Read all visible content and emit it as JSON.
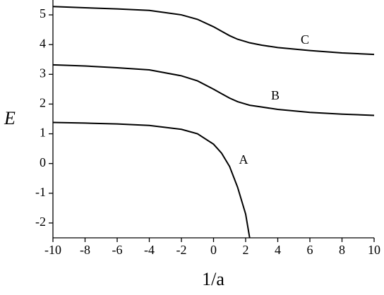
{
  "chart_data": {
    "type": "line",
    "xlabel": "1/a",
    "ylabel": "E",
    "x": [
      -10,
      -8,
      -6,
      -4,
      -2,
      -1,
      0,
      0.5,
      1,
      1.5,
      2,
      2.25,
      3,
      4,
      6,
      8,
      10
    ],
    "series": [
      {
        "name": "A",
        "color": "#000000",
        "values": [
          1.38,
          1.36,
          1.33,
          1.28,
          1.15,
          1.0,
          0.65,
          0.35,
          -0.1,
          -0.8,
          -1.7,
          -2.5,
          null,
          null,
          null,
          null,
          null
        ]
      },
      {
        "name": "B",
        "color": "#000000",
        "values": [
          3.32,
          3.28,
          3.22,
          3.15,
          2.95,
          2.78,
          2.5,
          2.35,
          2.2,
          2.08,
          2.0,
          1.96,
          1.9,
          1.82,
          1.72,
          1.66,
          1.62
        ]
      },
      {
        "name": "C",
        "color": "#000000",
        "values": [
          5.28,
          5.24,
          5.2,
          5.15,
          5.0,
          4.85,
          4.6,
          4.45,
          4.3,
          4.18,
          4.1,
          4.06,
          3.98,
          3.9,
          3.8,
          3.72,
          3.67
        ]
      }
    ],
    "xlim": [
      -10,
      10
    ],
    "xticks": [
      -10,
      -8,
      -6,
      -4,
      -2,
      0,
      2,
      4,
      6,
      8,
      10
    ],
    "ylim": [
      -2.5,
      5.5
    ],
    "yticks": [
      -2,
      -1,
      0,
      1,
      2,
      3,
      4,
      5
    ]
  }
}
